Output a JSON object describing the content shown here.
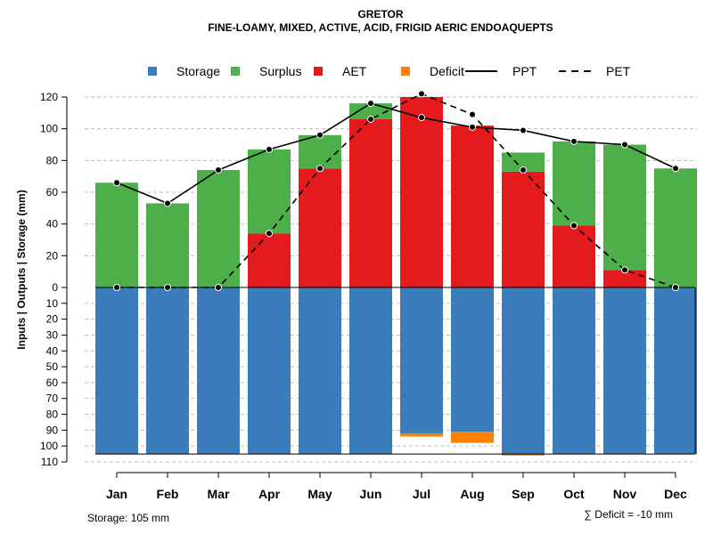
{
  "colors": {
    "storage": "#3a7dba",
    "surplus": "#4daf4a",
    "aet": "#e41a1c",
    "deficit": "#ff7f00",
    "grid": "#bdbdbd",
    "line": "#000000"
  },
  "chart_data": {
    "type": "bar",
    "title": "GRETOR",
    "subtitle": "FINE-LOAMY, MIXED, ACTIVE, ACID, FRIGID AERIC ENDOAQUEPTS",
    "ylabel": "Inputs | Outputs | Storage    (mm)",
    "ylim": [
      -110,
      125
    ],
    "yticks_pos": [
      0,
      20,
      40,
      60,
      80,
      100,
      120
    ],
    "yticks_neg": [
      10,
      20,
      30,
      40,
      50,
      60,
      70,
      80,
      90,
      100,
      110
    ],
    "grid": true,
    "categories": [
      "Jan",
      "Feb",
      "Mar",
      "Apr",
      "May",
      "Jun",
      "Jul",
      "Aug",
      "Sep",
      "Oct",
      "Nov",
      "Dec"
    ],
    "legend": {
      "position": "top",
      "items": [
        {
          "label": "Storage",
          "kind": "square",
          "color_key": "storage"
        },
        {
          "label": "Surplus",
          "kind": "square",
          "color_key": "surplus"
        },
        {
          "label": "AET",
          "kind": "square",
          "color_key": "aet"
        },
        {
          "label": "Deficit",
          "kind": "square",
          "color_key": "deficit"
        },
        {
          "label": "PPT",
          "kind": "solid"
        },
        {
          "label": "PET",
          "kind": "dashed"
        }
      ]
    },
    "series": [
      {
        "name": "AET",
        "values": [
          0,
          0,
          0,
          34,
          75,
          106,
          120,
          102,
          73,
          39,
          11,
          0
        ]
      },
      {
        "name": "Surplus",
        "values": [
          66,
          53,
          74,
          53,
          21,
          10,
          0,
          0,
          12,
          53,
          79,
          75
        ]
      },
      {
        "name": "Storage",
        "values": [
          105,
          105,
          105,
          105,
          105,
          105,
          92,
          91,
          105,
          105,
          105,
          105
        ]
      },
      {
        "name": "Deficit",
        "values": [
          0,
          0,
          0,
          0,
          0,
          0,
          2,
          7,
          1,
          0,
          0,
          0
        ]
      },
      {
        "name": "PPT",
        "values": [
          66,
          53,
          74,
          87,
          96,
          116,
          107,
          101,
          99,
          92,
          90,
          75
        ]
      },
      {
        "name": "PET",
        "values": [
          0,
          0,
          0,
          34,
          75,
          106,
          122,
          109,
          74,
          39,
          11,
          0
        ]
      }
    ]
  },
  "footnotes": {
    "storage": "Storage: 105 mm",
    "deficit": "∑ Deficit = -10 mm"
  }
}
